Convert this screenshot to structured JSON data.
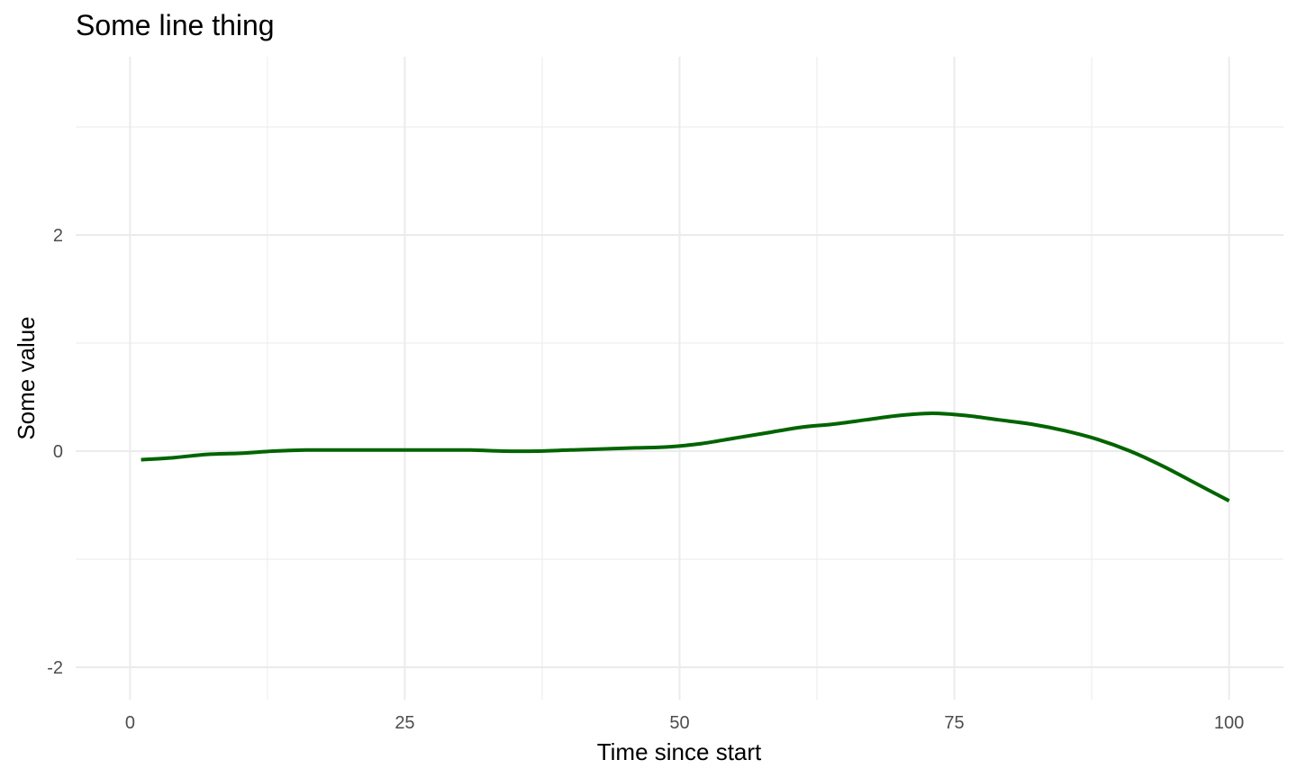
{
  "chart_data": {
    "type": "line",
    "title": "Some line thing",
    "xlabel": "Time since start",
    "ylabel": "Some value",
    "xlim": [
      -4.95,
      104.95
    ],
    "ylim": [
      -2.3,
      3.65
    ],
    "x_ticks": [
      0,
      25,
      50,
      75,
      100
    ],
    "x_tick_labels": [
      "0",
      "25",
      "50",
      "75",
      "100"
    ],
    "y_ticks": [
      -2,
      0,
      2
    ],
    "y_tick_labels": [
      "-2",
      "0",
      "2"
    ],
    "x_minor_ticks": [
      12.5,
      37.5,
      62.5,
      87.5
    ],
    "y_minor_ticks": [
      -1,
      1,
      3
    ],
    "grid": true,
    "series": [
      {
        "color": "#006400",
        "x": [
          1,
          4,
          7,
          10,
          13,
          16,
          19,
          22,
          25,
          28,
          31,
          34,
          37,
          40,
          43,
          46,
          49,
          52,
          55,
          58,
          61,
          64,
          67,
          70,
          73,
          76,
          79,
          82,
          85,
          88,
          91,
          94,
          97,
          100
        ],
        "y": [
          -0.08,
          -0.06,
          -0.03,
          -0.02,
          0.0,
          0.01,
          0.01,
          0.01,
          0.01,
          0.01,
          0.01,
          0.0,
          0.0,
          0.01,
          0.02,
          0.03,
          0.04,
          0.07,
          0.12,
          0.17,
          0.22,
          0.25,
          0.29,
          0.33,
          0.35,
          0.33,
          0.29,
          0.25,
          0.19,
          0.11,
          0.0,
          -0.14,
          -0.3,
          -0.46
        ]
      }
    ]
  }
}
